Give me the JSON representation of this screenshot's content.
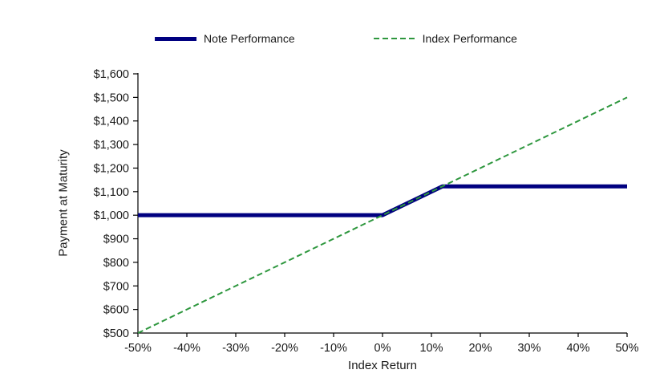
{
  "page": {
    "background_color": "#ffffff",
    "axis_color": "#000000",
    "text_color": "#1a1a1a"
  },
  "chart_data": {
    "type": "line",
    "title": "",
    "xlabel": "Index Return",
    "ylabel": "Payment at Maturity",
    "xlim": [
      -50,
      50
    ],
    "ylim": [
      500,
      1600
    ],
    "x_ticks": [
      -50,
      -40,
      -30,
      -20,
      -10,
      0,
      10,
      20,
      30,
      40,
      50
    ],
    "x_tick_labels": [
      "-50%",
      "-40%",
      "-30%",
      "-20%",
      "-10%",
      "0%",
      "10%",
      "20%",
      "30%",
      "40%",
      "50%"
    ],
    "y_ticks": [
      500,
      600,
      700,
      800,
      900,
      1000,
      1100,
      1200,
      1300,
      1400,
      1500,
      1600
    ],
    "y_tick_labels": [
      "$500",
      "$600",
      "$700",
      "$800",
      "$900",
      "$1,000",
      "$1,100",
      "$1,200",
      "$1,300",
      "$1,400",
      "$1,500",
      "$1,600"
    ],
    "grid": false,
    "legend_position": "top-center",
    "series": [
      {
        "name": "Note Performance",
        "color": "#000080",
        "style": "solid",
        "stroke_width": 5,
        "x": [
          -50,
          0,
          12.25,
          50
        ],
        "y": [
          1000,
          1000,
          1122.5,
          1122.5
        ]
      },
      {
        "name": "Index Performance",
        "color": "#2e973e",
        "style": "dashed",
        "stroke_width": 2,
        "x": [
          -50,
          50
        ],
        "y": [
          500,
          1500
        ]
      }
    ]
  }
}
